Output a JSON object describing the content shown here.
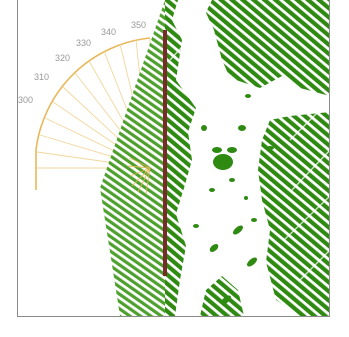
{
  "dial": {
    "color": "#e8b85a",
    "labels": [
      "300",
      "310",
      "320",
      "330",
      "340",
      "350"
    ]
  },
  "pattern": {
    "color": "#2f8a12",
    "trunk_color": "#7a2a2a"
  }
}
